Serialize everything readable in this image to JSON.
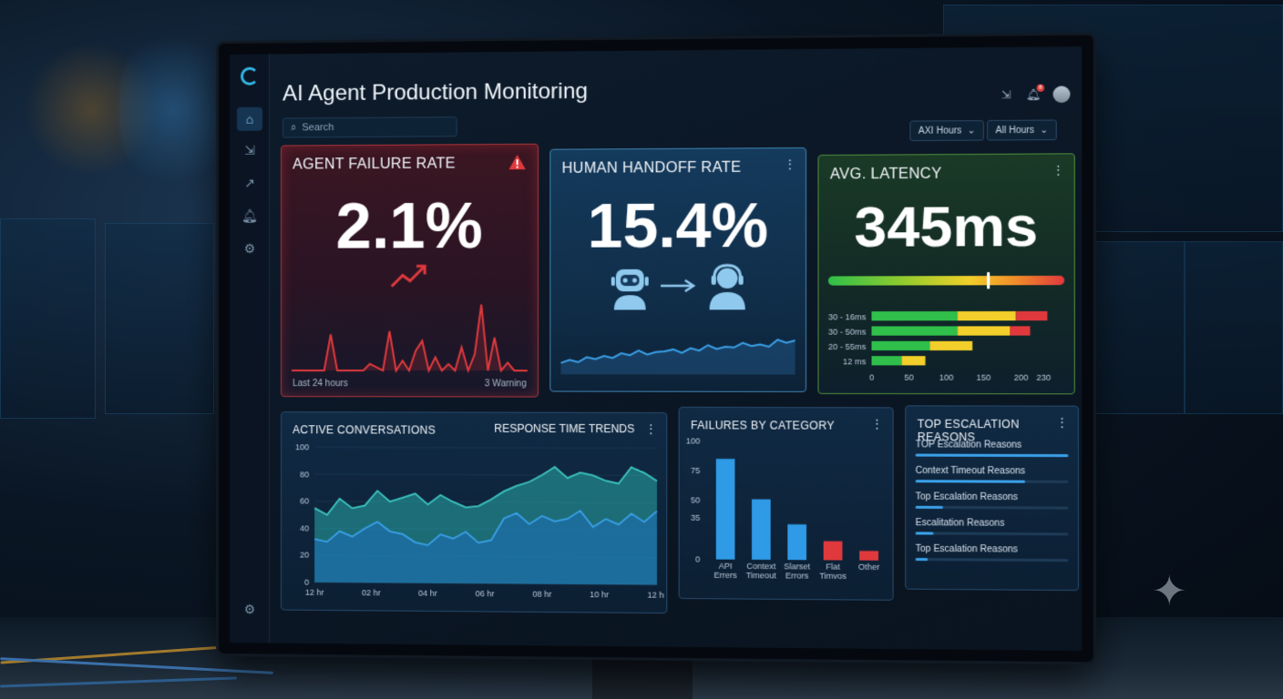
{
  "app": {
    "title": "AI Agent Production Monitoring",
    "search_placeholder": "Search",
    "notifications_count": "8",
    "filters": [
      "AXI Hours",
      "All Hours"
    ]
  },
  "sidebar": {
    "items": [
      {
        "icon": "home-icon",
        "glyph": "⌂",
        "active": true
      },
      {
        "icon": "export-icon",
        "glyph": "⇲",
        "active": false
      },
      {
        "icon": "trend-icon",
        "glyph": "↗",
        "active": false
      },
      {
        "icon": "bell-icon",
        "glyph": "🔔︎",
        "active": false
      },
      {
        "icon": "gear-icon",
        "glyph": "⚙",
        "active": false
      }
    ],
    "bottom_icon": {
      "icon": "gear-icon",
      "glyph": "⚙"
    }
  },
  "failure_card": {
    "title": "AGENT FAILURE RATE",
    "value": "2.1%",
    "foot_left": "Last 24 hours",
    "foot_right": "3 Warning",
    "spark": [
      0,
      0,
      0,
      0,
      0,
      0,
      0.55,
      0,
      0,
      0,
      0,
      0,
      0.1,
      0.05,
      0,
      0.6,
      0,
      0.15,
      0,
      0.3,
      0.45,
      0,
      0.2,
      0,
      0.1,
      0,
      0.35,
      0,
      0.25,
      1.0,
      0,
      0.5,
      0,
      0.12,
      0,
      0,
      0
    ]
  },
  "handoff_card": {
    "title": "HUMAN HANDOFF RATE",
    "value": "15.4%",
    "spark": [
      0.2,
      0.28,
      0.22,
      0.35,
      0.3,
      0.38,
      0.33,
      0.45,
      0.4,
      0.52,
      0.42,
      0.48,
      0.5,
      0.55,
      0.46,
      0.58,
      0.52,
      0.66,
      0.56,
      0.62,
      0.6,
      0.72,
      0.64,
      0.68,
      0.62,
      0.8,
      0.72,
      0.78
    ]
  },
  "latency_card": {
    "title": "AVG. LATENCY",
    "value": "345ms",
    "gauge_level": 0.67,
    "bars": [
      {
        "label": "30 - 16ms",
        "green": 115,
        "yellow": 78,
        "red": 42
      },
      {
        "label": "30 - 50ms",
        "green": 115,
        "yellow": 70,
        "red": 27
      },
      {
        "label": "20 - 55ms",
        "green": 78,
        "yellow": 57,
        "red": 0
      },
      {
        "label": "12 ms",
        "green": 40,
        "yellow": 32,
        "red": 0
      }
    ],
    "xticks": [
      "0",
      "50",
      "100",
      "150",
      "200",
      "230"
    ],
    "xmax": 250
  },
  "active_card": {
    "title": "ACTIVE CONVERSATIONS",
    "subtitle": "RESPONSE TIME TRENDS"
  },
  "failures_card": {
    "title": "FAILURES BY CATEGORY"
  },
  "escalation_card": {
    "title": "TOP ESCALATION REASONS",
    "items": [
      {
        "label": "TOP Escalation Reasons",
        "level": 1.0
      },
      {
        "label": "Context Timeout Reasons",
        "level": 0.72
      },
      {
        "label": "Top Escalation Reasons",
        "level": 0.18
      },
      {
        "label": "Escalitation Reasons",
        "level": 0.12
      },
      {
        "label": "Top Escalation Reasons",
        "level": 0.08
      }
    ]
  },
  "chart_data": [
    {
      "type": "area",
      "title": "ACTIVE CONVERSATIONS",
      "ylim": [
        0,
        100
      ],
      "yticks": [
        "100",
        "80",
        "60",
        "40",
        "20",
        "0"
      ],
      "xticks": [
        "12 hr",
        "02 hr",
        "04 hr",
        "06 hr",
        "08 hr",
        "10 hr",
        "12 hr"
      ],
      "series": [
        {
          "values": [
            55,
            50,
            62,
            55,
            57,
            68,
            60,
            63,
            66,
            58,
            65,
            60,
            56,
            57,
            62,
            68,
            72,
            75,
            80,
            86,
            78,
            82,
            80,
            76,
            74,
            86,
            82,
            76
          ]
        },
        {
          "values": [
            32,
            30,
            38,
            34,
            40,
            45,
            38,
            36,
            30,
            28,
            36,
            33,
            38,
            30,
            32,
            48,
            52,
            44,
            50,
            46,
            48,
            54,
            42,
            48,
            44,
            52,
            46,
            54
          ]
        }
      ]
    },
    {
      "type": "bar",
      "title": "FAILURES BY CATEGORY",
      "categories": [
        "API Errers",
        "Context Timeout",
        "Slarset Errors",
        "Flat Timvos",
        "Other"
      ],
      "values": [
        85,
        51,
        30,
        16,
        8
      ],
      "colors": [
        "#2f9ae6",
        "#2f9ae6",
        "#2f9ae6",
        "#e0393d",
        "#e0393d"
      ],
      "yticks": [
        "100",
        "75",
        "50",
        "35",
        "0"
      ],
      "ylim": [
        0,
        100
      ]
    }
  ]
}
